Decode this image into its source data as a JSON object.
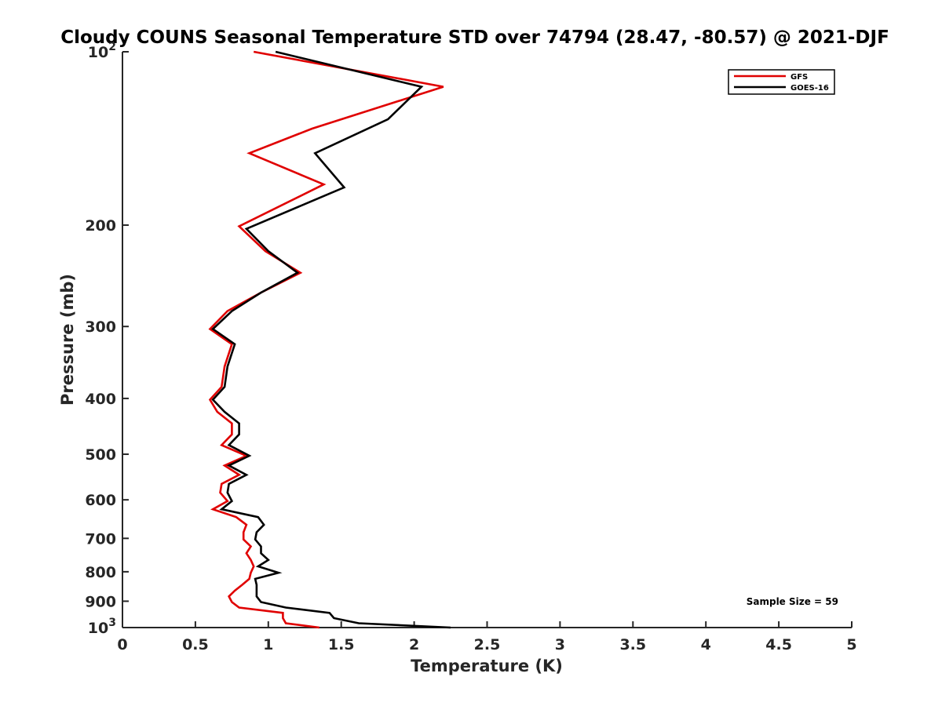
{
  "chart_data": {
    "type": "line",
    "title": "Cloudy COUNS Seasonal Temperature STD over 74794 (28.47, -80.57) @ 2021-DJF",
    "xlabel": "Temperature (K)",
    "ylabel": "Pressure (mb)",
    "xlim": [
      0,
      5
    ],
    "ylim": [
      100,
      1000
    ],
    "y_scale": "log",
    "y_reversed": true,
    "x_ticks": [
      "0",
      "0.5",
      "1",
      "1.5",
      "2",
      "2.5",
      "3",
      "3.5",
      "4",
      "4.5",
      "5"
    ],
    "y_ticks": [
      {
        "value": 100,
        "label": "10",
        "exp": "2"
      },
      {
        "value": 200,
        "label": "200"
      },
      {
        "value": 300,
        "label": "300"
      },
      {
        "value": 400,
        "label": "400"
      },
      {
        "value": 500,
        "label": "500"
      },
      {
        "value": 600,
        "label": "600"
      },
      {
        "value": 700,
        "label": "700"
      },
      {
        "value": 800,
        "label": "800"
      },
      {
        "value": 900,
        "label": "900"
      },
      {
        "value": 1000,
        "label": "10",
        "exp": "3"
      }
    ],
    "legend_position": "top-right",
    "annotation": "Sample Size = 59",
    "series": [
      {
        "name": "GFS",
        "color": "#e00000",
        "points": [
          [
            0.9,
            100
          ],
          [
            2.2,
            115
          ],
          [
            1.3,
            136
          ],
          [
            0.87,
            150
          ],
          [
            1.38,
            170
          ],
          [
            0.8,
            201
          ],
          [
            0.98,
            222
          ],
          [
            1.22,
            242
          ],
          [
            0.95,
            262
          ],
          [
            0.72,
            282
          ],
          [
            0.6,
            303
          ],
          [
            0.75,
            322
          ],
          [
            0.7,
            352
          ],
          [
            0.68,
            382
          ],
          [
            0.6,
            402
          ],
          [
            0.65,
            422
          ],
          [
            0.75,
            442
          ],
          [
            0.75,
            462
          ],
          [
            0.68,
            482
          ],
          [
            0.85,
            503
          ],
          [
            0.7,
            523
          ],
          [
            0.8,
            543
          ],
          [
            0.68,
            563
          ],
          [
            0.67,
            583
          ],
          [
            0.72,
            603
          ],
          [
            0.62,
            623
          ],
          [
            0.78,
            643
          ],
          [
            0.85,
            663
          ],
          [
            0.83,
            683
          ],
          [
            0.83,
            703
          ],
          [
            0.88,
            723
          ],
          [
            0.85,
            743
          ],
          [
            0.88,
            763
          ],
          [
            0.9,
            783
          ],
          [
            0.88,
            803
          ],
          [
            0.87,
            823
          ],
          [
            0.82,
            843
          ],
          [
            0.77,
            863
          ],
          [
            0.73,
            883
          ],
          [
            0.75,
            903
          ],
          [
            0.8,
            923
          ],
          [
            1.1,
            943
          ],
          [
            1.1,
            963
          ],
          [
            1.12,
            983
          ],
          [
            1.35,
            1000
          ]
        ]
      },
      {
        "name": "GOES-16",
        "color": "#000000",
        "points": [
          [
            1.05,
            100
          ],
          [
            2.05,
            115
          ],
          [
            1.82,
            131
          ],
          [
            1.32,
            150
          ],
          [
            1.52,
            172
          ],
          [
            0.85,
            203
          ],
          [
            1.0,
            222
          ],
          [
            1.2,
            242
          ],
          [
            0.95,
            262
          ],
          [
            0.75,
            282
          ],
          [
            0.62,
            303
          ],
          [
            0.77,
            322
          ],
          [
            0.72,
            352
          ],
          [
            0.7,
            382
          ],
          [
            0.62,
            402
          ],
          [
            0.7,
            422
          ],
          [
            0.8,
            442
          ],
          [
            0.8,
            462
          ],
          [
            0.73,
            482
          ],
          [
            0.87,
            503
          ],
          [
            0.73,
            523
          ],
          [
            0.85,
            543
          ],
          [
            0.73,
            563
          ],
          [
            0.72,
            583
          ],
          [
            0.75,
            603
          ],
          [
            0.68,
            623
          ],
          [
            0.93,
            643
          ],
          [
            0.97,
            663
          ],
          [
            0.92,
            683
          ],
          [
            0.91,
            703
          ],
          [
            0.95,
            723
          ],
          [
            0.95,
            743
          ],
          [
            1.0,
            763
          ],
          [
            0.93,
            783
          ],
          [
            1.07,
            803
          ],
          [
            0.91,
            823
          ],
          [
            0.92,
            843
          ],
          [
            0.92,
            863
          ],
          [
            0.92,
            883
          ],
          [
            0.95,
            903
          ],
          [
            1.12,
            923
          ],
          [
            1.42,
            943
          ],
          [
            1.45,
            963
          ],
          [
            1.62,
            983
          ],
          [
            2.25,
            1000
          ]
        ]
      }
    ]
  }
}
